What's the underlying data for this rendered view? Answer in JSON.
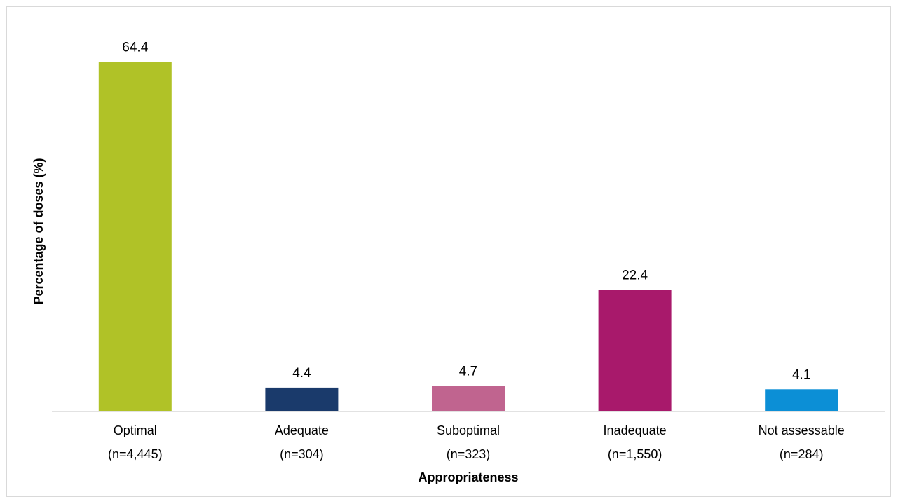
{
  "chart_data": {
    "type": "bar",
    "title": "",
    "xlabel": "Appropriateness",
    "ylabel": "Percentage of doses (%)",
    "categories": [
      [
        "Optimal",
        "(n=4,445)"
      ],
      [
        "Adequate",
        "(n=304)"
      ],
      [
        "Suboptimal",
        "(n=323)"
      ],
      [
        "Inadequate",
        "(n=1,550)"
      ],
      [
        "Not assessable",
        "(n=284)"
      ]
    ],
    "values": [
      64.4,
      4.4,
      4.7,
      22.4,
      4.1
    ],
    "value_labels": [
      "64.4",
      "4.4",
      "4.7",
      "22.4",
      "4.1"
    ],
    "colors": [
      "#b0c227",
      "#1a3a6b",
      "#c0648f",
      "#a8196b",
      "#0c8fd6"
    ],
    "ylim": [
      0,
      70
    ],
    "grid": false,
    "legend": "none"
  }
}
